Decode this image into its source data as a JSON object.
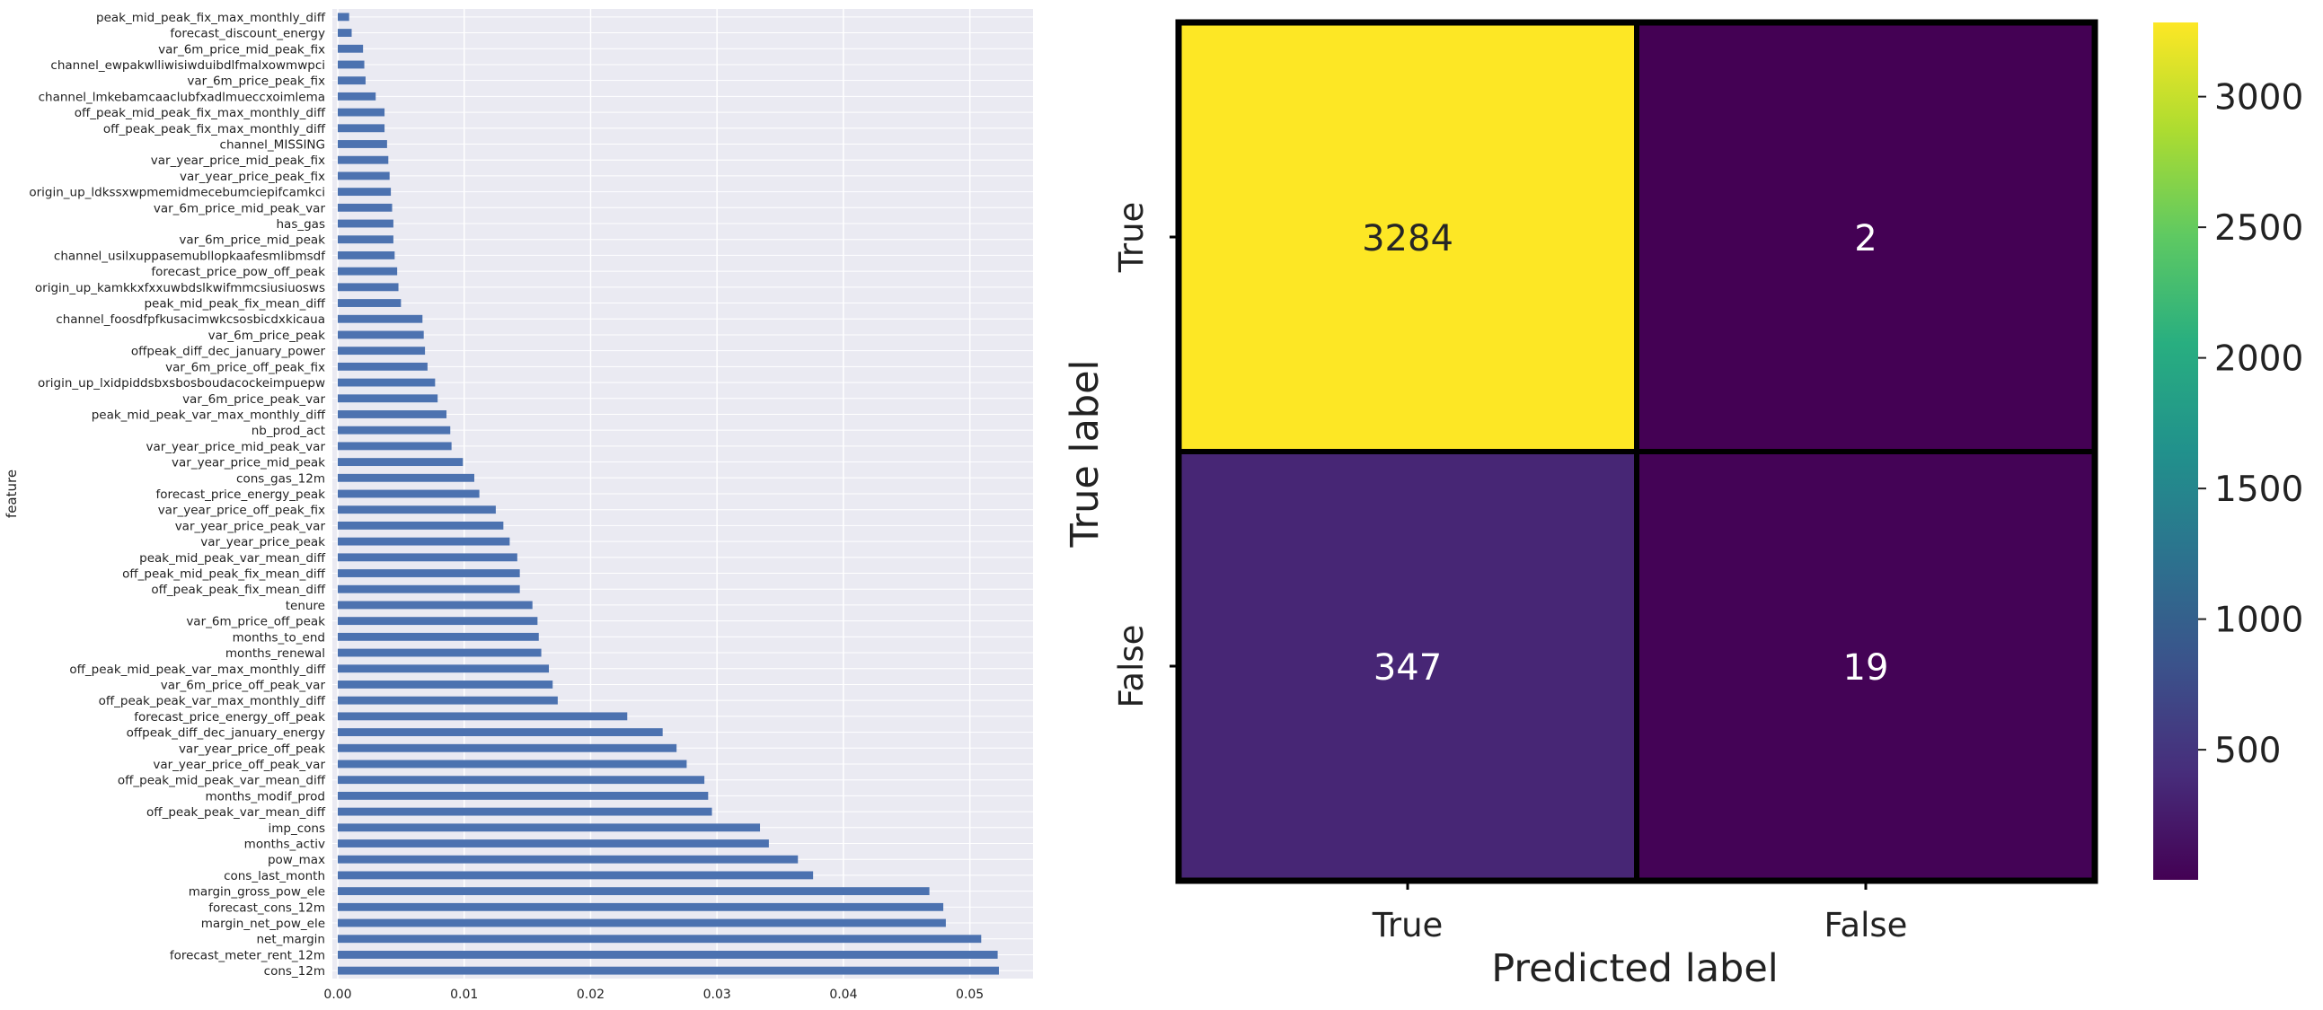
{
  "chart_data": [
    {
      "type": "bar",
      "orientation": "horizontal",
      "ylabel": "feature",
      "xlabel": "",
      "xlim": [
        0,
        0.055
      ],
      "xticks": [
        "0.00",
        "0.01",
        "0.02",
        "0.03",
        "0.04",
        "0.05"
      ],
      "grid": true,
      "bar_color": "#4c72b0",
      "background_color": "#eaeaf2",
      "categories": [
        "peak_mid_peak_fix_max_monthly_diff",
        "forecast_discount_energy",
        "var_6m_price_mid_peak_fix",
        "channel_ewpakwlliwisiwduibdlfmalxowmwpci",
        "var_6m_price_peak_fix",
        "channel_lmkebamcaaclubfxadlmueccxoimlema",
        "off_peak_mid_peak_fix_max_monthly_diff",
        "off_peak_peak_fix_max_monthly_diff",
        "channel_MISSING",
        "var_year_price_mid_peak_fix",
        "var_year_price_peak_fix",
        "origin_up_ldkssxwpmemidmecebumciepifcamkci",
        "var_6m_price_mid_peak_var",
        "has_gas",
        "var_6m_price_mid_peak",
        "channel_usilxuppasemubllopkaafesmlibmsdf",
        "forecast_price_pow_off_peak",
        "origin_up_kamkkxfxxuwbdslkwifmmcsiusiuosws",
        "peak_mid_peak_fix_mean_diff",
        "channel_foosdfpfkusacimwkcsosbicdxkicaua",
        "var_6m_price_peak",
        "offpeak_diff_dec_january_power",
        "var_6m_price_off_peak_fix",
        "origin_up_lxidpiddsbxsbosboudacockeimpuepw",
        "var_6m_price_peak_var",
        "peak_mid_peak_var_max_monthly_diff",
        "nb_prod_act",
        "var_year_price_mid_peak_var",
        "var_year_price_mid_peak",
        "cons_gas_12m",
        "forecast_price_energy_peak",
        "var_year_price_off_peak_fix",
        "var_year_price_peak_var",
        "var_year_price_peak",
        "peak_mid_peak_var_mean_diff",
        "off_peak_mid_peak_fix_mean_diff",
        "off_peak_peak_fix_mean_diff",
        "tenure",
        "var_6m_price_off_peak",
        "months_to_end",
        "months_renewal",
        "off_peak_mid_peak_var_max_monthly_diff",
        "var_6m_price_off_peak_var",
        "off_peak_peak_var_max_monthly_diff",
        "forecast_price_energy_off_peak",
        "offpeak_diff_dec_january_energy",
        "var_year_price_off_peak",
        "var_year_price_off_peak_var",
        "off_peak_mid_peak_var_mean_diff",
        "months_modif_prod",
        "off_peak_peak_var_mean_diff",
        "imp_cons",
        "months_activ",
        "pow_max",
        "cons_last_month",
        "margin_gross_pow_ele",
        "forecast_cons_12m",
        "margin_net_pow_ele",
        "net_margin",
        "forecast_meter_rent_12m",
        "cons_12m"
      ],
      "values": [
        0.0009,
        0.0011,
        0.002,
        0.0021,
        0.0022,
        0.003,
        0.0037,
        0.0037,
        0.0039,
        0.004,
        0.0041,
        0.0042,
        0.0043,
        0.0044,
        0.0044,
        0.0045,
        0.0047,
        0.0048,
        0.005,
        0.0067,
        0.0068,
        0.0069,
        0.0071,
        0.0077,
        0.0079,
        0.0086,
        0.0089,
        0.009,
        0.0099,
        0.0108,
        0.0112,
        0.0125,
        0.0131,
        0.0136,
        0.0142,
        0.0144,
        0.0144,
        0.0154,
        0.0158,
        0.0159,
        0.0161,
        0.0167,
        0.017,
        0.0174,
        0.0229,
        0.0257,
        0.0268,
        0.0276,
        0.029,
        0.0293,
        0.0296,
        0.0334,
        0.0341,
        0.0364,
        0.0376,
        0.0468,
        0.0479,
        0.0481,
        0.0509,
        0.0522,
        0.0523
      ]
    },
    {
      "type": "heatmap",
      "xlabel": "Predicted label",
      "ylabel": "True label",
      "x_categories": [
        "True",
        "False"
      ],
      "y_categories": [
        "True",
        "False"
      ],
      "values": [
        [
          3284,
          2
        ],
        [
          347,
          19
        ]
      ],
      "colormap": "viridis",
      "colorbar": {
        "range": [
          2,
          3284
        ],
        "ticks": [
          500,
          1000,
          1500,
          2000,
          2500,
          3000
        ],
        "tick_labels": [
          "500",
          "1000",
          "1500",
          "2000",
          "2500",
          "3000"
        ]
      }
    }
  ]
}
